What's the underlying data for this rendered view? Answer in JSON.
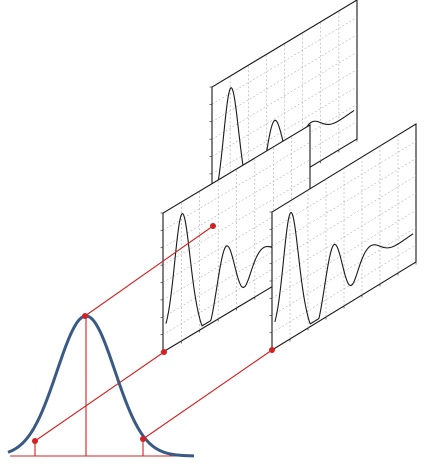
{
  "colors": {
    "gaussian": "#3a5a86",
    "connector": "#d32020",
    "frame": "#1a1a1a",
    "grid": "#9a9a9a"
  },
  "panels": [
    {
      "id": "top"
    },
    {
      "id": "middle"
    },
    {
      "id": "right"
    }
  ]
}
